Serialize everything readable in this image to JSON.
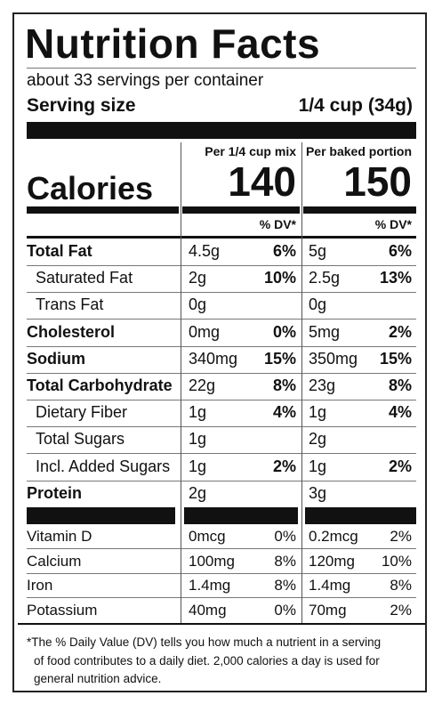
{
  "title": "Nutrition Facts",
  "servings": "about 33 servings per container",
  "serving_size": {
    "label": "Serving size",
    "value": "1/4 cup (34g)"
  },
  "columns": [
    "Per 1/4 cup mix",
    "Per baked portion"
  ],
  "calories": {
    "label": "Calories",
    "values": [
      140,
      150
    ]
  },
  "dv_header": "% DV*",
  "nutrients": [
    {
      "name": "Total Fat",
      "bold": true,
      "indent": false,
      "values": [
        [
          "4.5g",
          "6%"
        ],
        [
          "5g",
          "6%"
        ]
      ]
    },
    {
      "name": "Saturated Fat",
      "bold": false,
      "indent": true,
      "values": [
        [
          "2g",
          "10%"
        ],
        [
          "2.5g",
          "13%"
        ]
      ]
    },
    {
      "name": "Trans Fat",
      "bold": false,
      "indent": true,
      "values": [
        [
          "0g"
        ],
        [
          "0g"
        ]
      ]
    },
    {
      "name": "Cholesterol",
      "bold": true,
      "indent": false,
      "values": [
        [
          "0mg",
          "0%"
        ],
        [
          "5mg",
          "2%"
        ]
      ]
    },
    {
      "name": "Sodium",
      "bold": true,
      "indent": false,
      "values": [
        [
          "340mg",
          "15%"
        ],
        [
          "350mg",
          "15%"
        ]
      ]
    },
    {
      "name": "Total Carbohydrate",
      "bold": true,
      "indent": false,
      "values": [
        [
          "22g",
          "8%"
        ],
        [
          "23g",
          "8%"
        ]
      ]
    },
    {
      "name": "Dietary Fiber",
      "bold": false,
      "indent": true,
      "values": [
        [
          "1g",
          "4%"
        ],
        [
          "1g",
          "4%"
        ]
      ]
    },
    {
      "name": "Total Sugars",
      "bold": false,
      "indent": true,
      "values": [
        [
          "1g"
        ],
        [
          "2g"
        ]
      ]
    },
    {
      "name": "Incl. Added Sugars",
      "bold": false,
      "indent": true,
      "values": [
        [
          "1g",
          "2%"
        ],
        [
          "1g",
          "2%"
        ]
      ]
    },
    {
      "name": "Protein",
      "bold": true,
      "indent": false,
      "values": [
        [
          "2g"
        ],
        [
          "3g"
        ]
      ]
    }
  ],
  "vitamins": [
    {
      "name": "Vitamin D",
      "values": [
        [
          "0mcg",
          "0%"
        ],
        [
          "0.2mcg",
          "2%"
        ]
      ]
    },
    {
      "name": "Calcium",
      "values": [
        [
          "100mg",
          "8%"
        ],
        [
          "120mg",
          "10%"
        ]
      ]
    },
    {
      "name": "Iron",
      "values": [
        [
          "1.4mg",
          "8%"
        ],
        [
          "1.4mg",
          "8%"
        ]
      ]
    },
    {
      "name": "Potassium",
      "values": [
        [
          "40mg",
          "0%"
        ],
        [
          "70mg",
          "2%"
        ]
      ]
    }
  ],
  "footnote": [
    "*The % Daily Value (DV) tells you how much a nutrient in a serving",
    "of food contributes to a daily diet. 2,000 calories a day is used for",
    "general nutrition advice."
  ]
}
